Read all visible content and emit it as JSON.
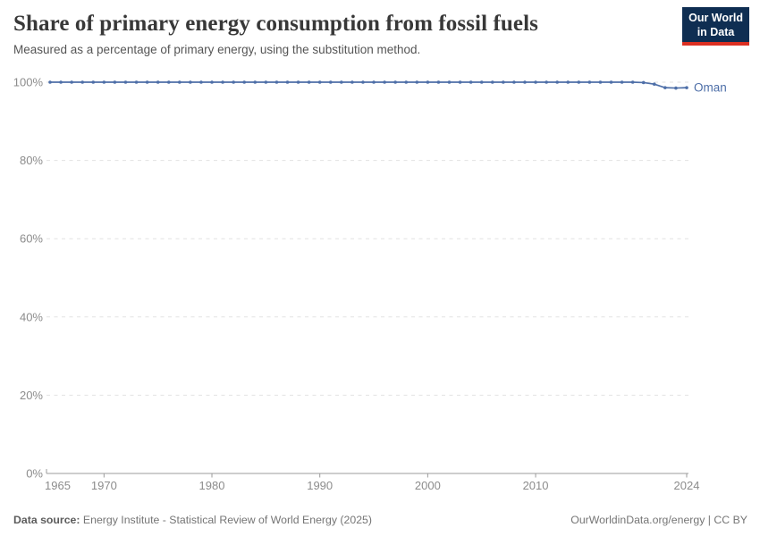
{
  "logo": {
    "line1": "Our World",
    "line2": "in Data",
    "bg_color": "#0f2e52",
    "bar_color": "#dc3022"
  },
  "footer": {
    "datasource_label": "Data source:",
    "datasource_text": " Energy Institute - Statistical Review of World Energy (2025)",
    "attribution": "OurWorldinData.org/energy | CC BY"
  },
  "chart_data": {
    "type": "line",
    "title": "Share of primary energy consumption from fossil fuels",
    "subtitle": "Measured as a percentage of primary energy, using the substitution method.",
    "xlabel": "",
    "ylabel": "",
    "xlim": [
      1965,
      2024
    ],
    "ylim": [
      0,
      100
    ],
    "grid": "dashed-horizontal",
    "legend_position": "end-of-line-label",
    "entity_label": "Oman",
    "x_ticks": [
      1965,
      1970,
      1980,
      1990,
      2000,
      2010,
      2024
    ],
    "y_ticks": [
      {
        "value": 0,
        "label": "0%"
      },
      {
        "value": 20,
        "label": "20%"
      },
      {
        "value": 40,
        "label": "40%"
      },
      {
        "value": 60,
        "label": "60%"
      },
      {
        "value": 80,
        "label": "80%"
      },
      {
        "value": 100,
        "label": "100%"
      }
    ],
    "series": [
      {
        "name": "Oman",
        "color": "#4e6fa8",
        "x": [
          1965,
          1966,
          1967,
          1968,
          1969,
          1970,
          1971,
          1972,
          1973,
          1974,
          1975,
          1976,
          1977,
          1978,
          1979,
          1980,
          1981,
          1982,
          1983,
          1984,
          1985,
          1986,
          1987,
          1988,
          1989,
          1990,
          1991,
          1992,
          1993,
          1994,
          1995,
          1996,
          1997,
          1998,
          1999,
          2000,
          2001,
          2002,
          2003,
          2004,
          2005,
          2006,
          2007,
          2008,
          2009,
          2010,
          2011,
          2012,
          2013,
          2014,
          2015,
          2016,
          2017,
          2018,
          2019,
          2020,
          2021,
          2022,
          2023,
          2024
        ],
        "values": [
          100,
          100,
          100,
          100,
          100,
          100,
          100,
          100,
          100,
          100,
          100,
          100,
          100,
          100,
          100,
          100,
          100,
          100,
          100,
          100,
          100,
          100,
          100,
          100,
          100,
          100,
          100,
          100,
          100,
          100,
          100,
          100,
          100,
          100,
          100,
          100,
          100,
          100,
          100,
          100,
          100,
          100,
          100,
          100,
          100,
          100,
          100,
          100,
          100,
          100,
          100,
          100,
          100,
          100,
          100,
          99.9,
          99.5,
          98.6,
          98.5,
          98.6
        ]
      }
    ],
    "colors": {
      "grid": "#e2e2e2",
      "axis": "#9b9b9b",
      "tick_label": "#8c8c8c"
    }
  }
}
